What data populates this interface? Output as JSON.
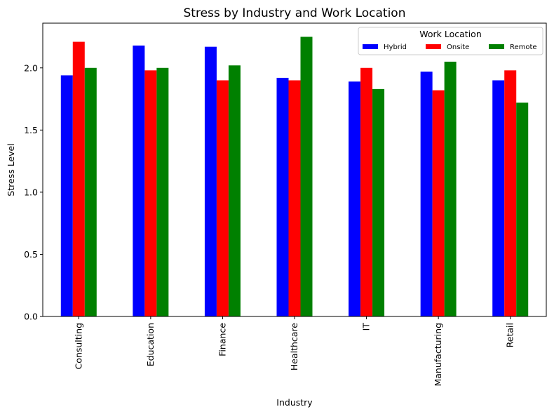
{
  "chart_data": {
    "type": "bar",
    "title": "Stress by Industry and Work Location",
    "xlabel": "Industry",
    "ylabel": "Stress Level",
    "categories": [
      "Consulting",
      "Education",
      "Finance",
      "Healthcare",
      "IT",
      "Manufacturing",
      "Retail"
    ],
    "series": [
      {
        "name": "Hybrid",
        "color": "#0000ff",
        "values": [
          1.94,
          2.18,
          2.17,
          1.92,
          1.89,
          1.97,
          1.9
        ]
      },
      {
        "name": "Onsite",
        "color": "#ff0000",
        "values": [
          2.21,
          1.98,
          1.9,
          1.9,
          2.0,
          1.82,
          1.98
        ]
      },
      {
        "name": "Remote",
        "color": "#008000",
        "values": [
          2.0,
          2.0,
          2.02,
          2.25,
          1.83,
          2.05,
          1.72
        ]
      }
    ],
    "ylim": [
      0,
      2.36
    ],
    "yticks": [
      "0.0",
      "0.5",
      "1.0",
      "1.5",
      "2.0"
    ],
    "legend": {
      "title": "Work Location",
      "position": "top-right"
    },
    "grid": false
  }
}
